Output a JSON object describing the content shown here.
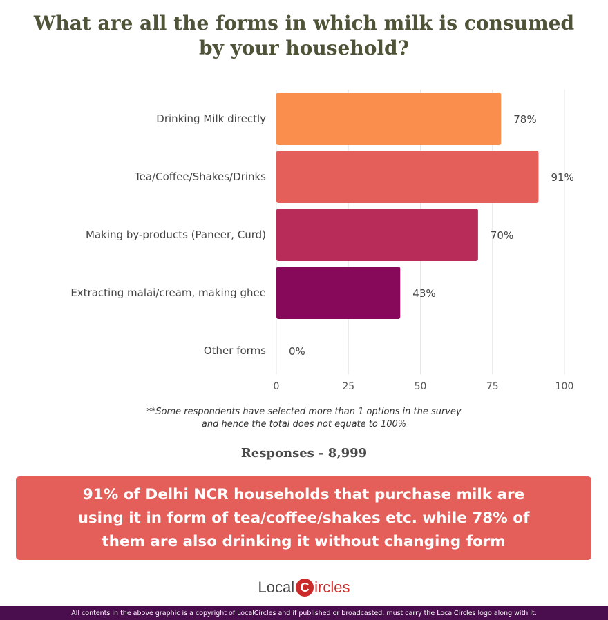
{
  "title": {
    "line1": "What are all the forms in which milk is consumed",
    "line2": "by your household?"
  },
  "chart_data": {
    "type": "bar",
    "orientation": "horizontal",
    "categories": [
      "Drinking Milk directly",
      "Tea/Coffee/Shakes/Drinks",
      "Making by-products (Paneer, Curd)",
      "Extracting malai/cream, making ghee",
      "Other forms"
    ],
    "values": [
      78,
      91,
      70,
      43,
      0
    ],
    "value_labels": [
      "78%",
      "91%",
      "70%",
      "43%",
      "0%"
    ],
    "colors": [
      "#fa8f4d",
      "#e45e5a",
      "#b82c5a",
      "#870a5a",
      "#cccccc"
    ],
    "xlim": [
      0,
      100
    ],
    "xticks": [
      0,
      25,
      50,
      75,
      100
    ],
    "grid": true
  },
  "note": {
    "line1": "**Some respondents have selected more than 1 options in the survey",
    "line2": "and hence the total does not equate to 100%"
  },
  "responses": "Responses - 8,999",
  "banner": {
    "line1": "91% of Delhi NCR households that purchase milk are",
    "line2": "using it in form of tea/coffee/shakes etc. while 78% of",
    "line3": "them are also drinking it without changing form"
  },
  "logo": {
    "part1": "Local",
    "pin": "C",
    "part2": "ircles"
  },
  "footer": "All contents in the above graphic is a copyright of LocalCircles and if published or broadcasted, must carry the LocalCircles logo along with it."
}
